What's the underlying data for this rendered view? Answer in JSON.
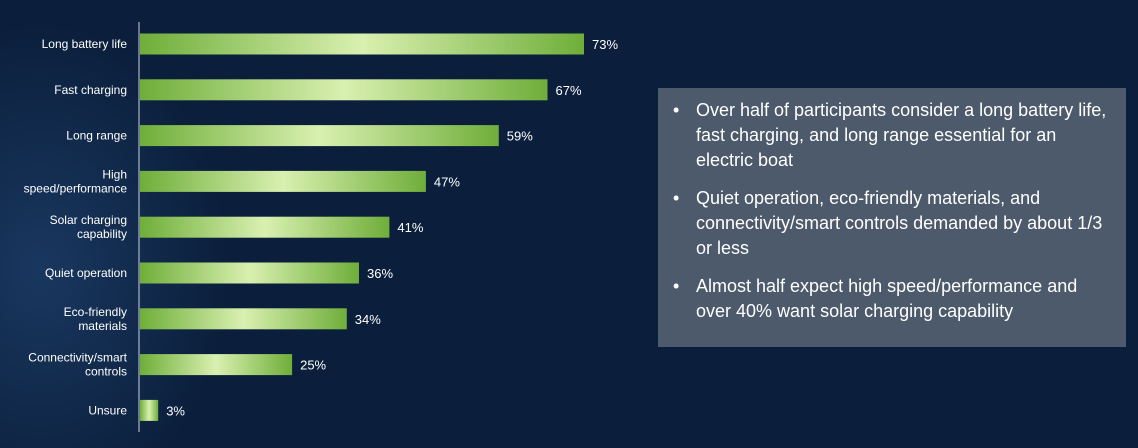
{
  "colors": {
    "background": "#0b1f3c",
    "bar_light": "#d9f0b0",
    "bar_dark": "#6fae3a",
    "panel": "#4d5a6b",
    "text": "#ffffff"
  },
  "chart_data": {
    "type": "bar",
    "orientation": "horizontal",
    "categories": [
      [
        "Long battery life"
      ],
      [
        "Fast charging"
      ],
      [
        "Long range"
      ],
      [
        "High",
        "speed/performance"
      ],
      [
        "Solar charging",
        "capability"
      ],
      [
        "Quiet operation"
      ],
      [
        "Eco-friendly",
        "materials"
      ],
      [
        "Connectivity/smart",
        "controls"
      ],
      [
        "Unsure"
      ]
    ],
    "values": [
      73,
      67,
      59,
      47,
      41,
      36,
      34,
      25,
      3
    ],
    "value_suffix": "%",
    "xlim": [
      0,
      100
    ],
    "grid": false,
    "legend": "none"
  },
  "summary": {
    "bullet_symbol": "•",
    "points": [
      "Over half of participants consider a long battery life, fast charging, and long range essential for an electric boat",
      "Quiet operation, eco-friendly materials, and connectivity/smart controls demanded by about 1/3 or less",
      "Almost half expect high speed/performance and over 40% want solar charging capability"
    ]
  }
}
